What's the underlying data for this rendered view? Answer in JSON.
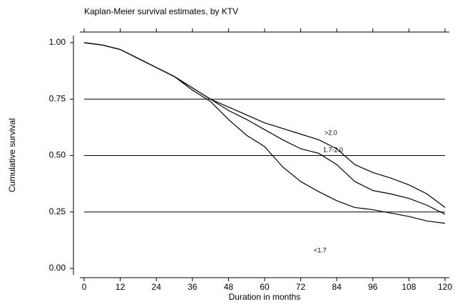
{
  "chart_data": {
    "type": "line",
    "title": "Kaplan-Meier survival estimates, by KTV",
    "x_label": "Duration in months",
    "y_label": "Cumulative survival",
    "x": [
      0,
      6,
      12,
      18,
      24,
      30,
      36,
      42,
      48,
      54,
      60,
      66,
      72,
      78,
      84,
      90,
      96,
      102,
      108,
      114,
      120
    ],
    "series": [
      {
        "name": ">2.0",
        "color": "#000000",
        "values": [
          1,
          0.99,
          0.97,
          0.93,
          0.89,
          0.85,
          0.8,
          0.75,
          0.715,
          0.68,
          0.645,
          0.62,
          0.595,
          0.57,
          0.53,
          0.46,
          0.425,
          0.4,
          0.37,
          0.33,
          0.27
        ]
      },
      {
        "name": "1.7-2.0",
        "color": "#000000",
        "values": [
          1,
          0.99,
          0.97,
          0.93,
          0.89,
          0.85,
          0.8,
          0.75,
          0.7,
          0.66,
          0.615,
          0.57,
          0.53,
          0.51,
          0.46,
          0.385,
          0.345,
          0.33,
          0.31,
          0.28,
          0.24
        ]
      },
      {
        "name": "<1.7",
        "color": "#000000",
        "values": [
          1,
          0.99,
          0.97,
          0.93,
          0.89,
          0.85,
          0.79,
          0.74,
          0.66,
          0.59,
          0.54,
          0.45,
          0.385,
          0.34,
          0.3,
          0.27,
          0.26,
          0.245,
          0.23,
          0.21,
          0.2
        ]
      }
    ],
    "xlim": [
      0,
      120
    ],
    "xticks": [
      0,
      12,
      24,
      36,
      48,
      60,
      72,
      84,
      96,
      108,
      120
    ],
    "ylim": [
      0,
      1
    ],
    "yticks": [
      {
        "value": 0,
        "label": "0.00"
      },
      {
        "value": 0.25,
        "label": "0.25"
      },
      {
        "value": 0.5,
        "label": "0.50"
      },
      {
        "value": 0.75,
        "label": "0.75"
      },
      {
        "value": 1,
        "label": "1.00"
      }
    ],
    "grid": true
  }
}
